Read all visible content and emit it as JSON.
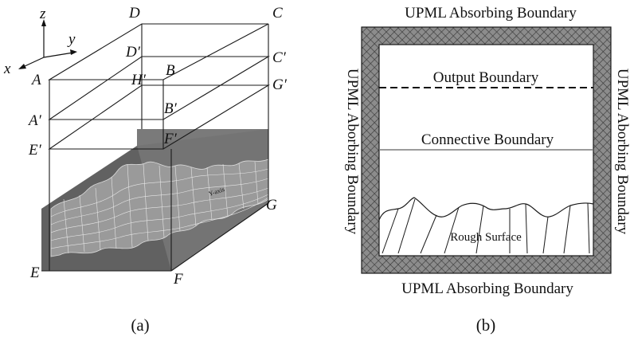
{
  "panel_a": {
    "caption": "(a)",
    "axes": {
      "z": "z",
      "y": "y",
      "x": "x"
    },
    "vertices": {
      "D": "D",
      "C": "C",
      "D_prime": "D′",
      "C_prime": "C′",
      "A": "A",
      "H_prime": "H′",
      "B": "B",
      "G_prime": "G′",
      "A_prime": "A′",
      "B_prime": "B′",
      "E_prime": "E′",
      "F_prime": "F′",
      "G": "G",
      "E": "E",
      "F": "F"
    },
    "surface_axis_label": "Y-axis"
  },
  "panel_b": {
    "caption": "(b)",
    "top_boundary": "UPML Absorbing Boundary",
    "bottom_boundary": "UPML Absorbing Boundary",
    "left_boundary": "UPML Aborbing Boundary",
    "right_boundary": "UPML Aborbing Boundary",
    "output_boundary": "Output Boundary",
    "connective_boundary": "Connective Boundary",
    "rough_surface": "Rough Surface"
  },
  "colors": {
    "line": "#1a1a1a",
    "medium_front": "#5a5a5a",
    "medium_side": "#727272",
    "upml_fill": "#8c8c8c"
  }
}
